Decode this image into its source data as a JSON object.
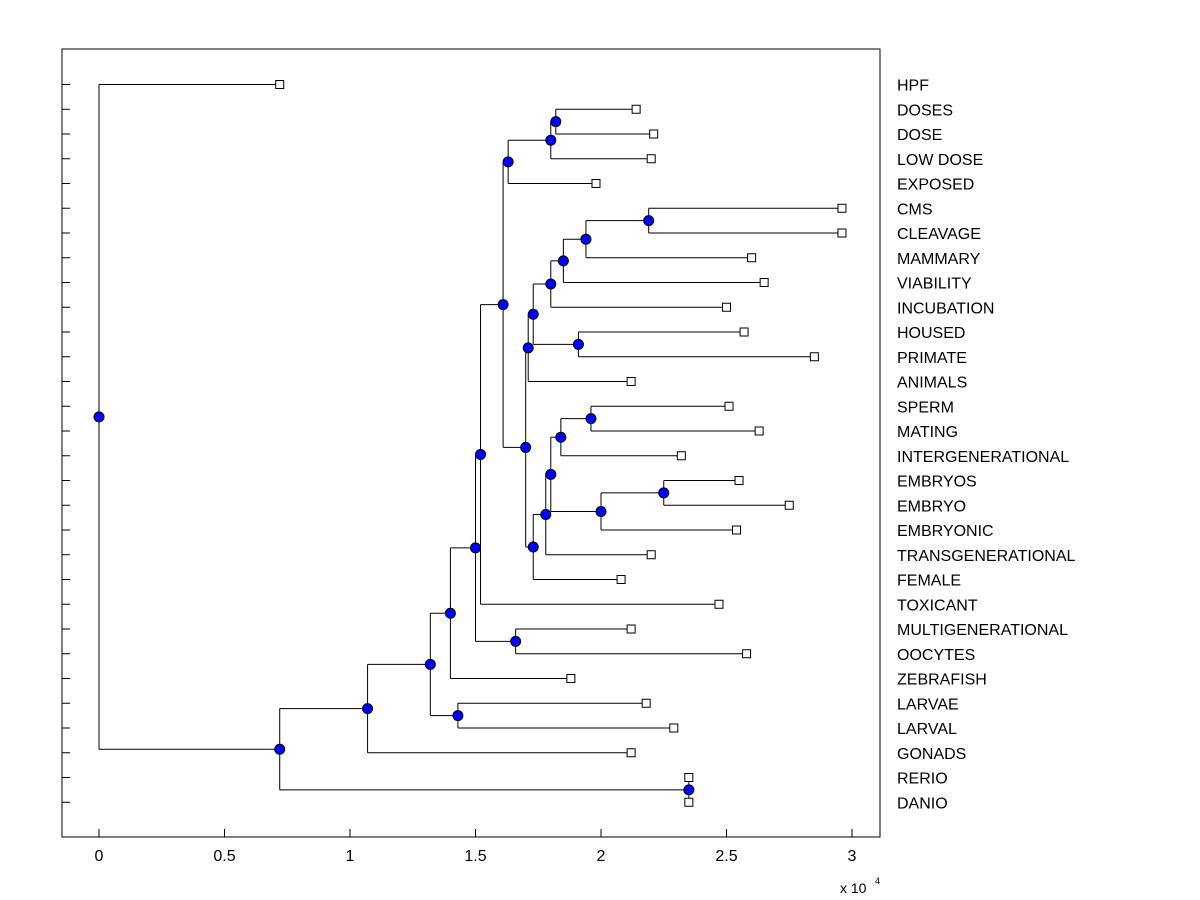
{
  "chart_data": {
    "type": "dendrogram",
    "title": "",
    "xlabel": "",
    "ylabel": "",
    "x_scale_label": "x 10",
    "x_scale_exponent": "4",
    "xlim": [
      -0.15,
      3.12
    ],
    "x_ticks": [
      0,
      0.5,
      1,
      1.5,
      2,
      2.5,
      3
    ],
    "x_tick_labels": [
      "0",
      "0.5",
      "1",
      "1.5",
      "2",
      "2.5",
      "3"
    ],
    "marker_color": "#0000ff",
    "leaves": [
      {
        "label": "HPF",
        "x": 0.72
      },
      {
        "label": "DOSES",
        "x": 2.14
      },
      {
        "label": "DOSE",
        "x": 2.21
      },
      {
        "label": "LOW DOSE",
        "x": 2.2
      },
      {
        "label": "EXPOSED",
        "x": 1.98
      },
      {
        "label": "CMS",
        "x": 2.96
      },
      {
        "label": "CLEAVAGE",
        "x": 2.96
      },
      {
        "label": "MAMMARY",
        "x": 2.6
      },
      {
        "label": "VIABILITY",
        "x": 2.65
      },
      {
        "label": "INCUBATION",
        "x": 2.5
      },
      {
        "label": "HOUSED",
        "x": 2.57
      },
      {
        "label": "PRIMATE",
        "x": 2.85
      },
      {
        "label": "ANIMALS",
        "x": 2.12
      },
      {
        "label": "SPERM",
        "x": 2.51
      },
      {
        "label": "MATING",
        "x": 2.63
      },
      {
        "label": "INTERGENERATIONAL",
        "x": 2.32
      },
      {
        "label": "EMBRYOS",
        "x": 2.55
      },
      {
        "label": "EMBRYO",
        "x": 2.75
      },
      {
        "label": "EMBRYONIC",
        "x": 2.54
      },
      {
        "label": "TRANSGENERATIONAL",
        "x": 2.2
      },
      {
        "label": "FEMALE",
        "x": 2.08
      },
      {
        "label": "TOXICANT",
        "x": 2.47
      },
      {
        "label": "MULTIGENERATIONAL",
        "x": 2.12
      },
      {
        "label": "OOCYTES",
        "x": 2.58
      },
      {
        "label": "ZEBRAFISH",
        "x": 1.88
      },
      {
        "label": "LARVAE",
        "x": 2.18
      },
      {
        "label": "LARVAL",
        "x": 2.29
      },
      {
        "label": "GONADS",
        "x": 2.12
      },
      {
        "label": "RERIO",
        "x": 2.35
      },
      {
        "label": "DANIO",
        "x": 2.35
      }
    ],
    "internal_nodes": [
      {
        "id": "n1",
        "x": 1.82,
        "children": [
          "DOSES",
          "DOSE"
        ]
      },
      {
        "id": "n2",
        "x": 1.8,
        "children": [
          "n1",
          "LOW DOSE"
        ]
      },
      {
        "id": "n3",
        "x": 1.63,
        "children": [
          "n2",
          "EXPOSED"
        ]
      },
      {
        "id": "n4",
        "x": 2.19,
        "children": [
          "CMS",
          "CLEAVAGE"
        ]
      },
      {
        "id": "n5",
        "x": 1.94,
        "children": [
          "n4",
          "MAMMARY"
        ]
      },
      {
        "id": "n6",
        "x": 1.85,
        "children": [
          "n5",
          "VIABILITY"
        ]
      },
      {
        "id": "n7",
        "x": 1.8,
        "children": [
          "n6",
          "INCUBATION"
        ]
      },
      {
        "id": "n8",
        "x": 1.91,
        "children": [
          "HOUSED",
          "PRIMATE"
        ]
      },
      {
        "id": "n9",
        "x": 1.73,
        "children": [
          "n7",
          "n8"
        ]
      },
      {
        "id": "n10",
        "x": 1.71,
        "children": [
          "n9",
          "ANIMALS"
        ]
      },
      {
        "id": "n11",
        "x": 1.96,
        "children": [
          "SPERM",
          "MATING"
        ]
      },
      {
        "id": "n12",
        "x": 1.84,
        "children": [
          "n11",
          "INTERGENERATIONAL"
        ]
      },
      {
        "id": "n13",
        "x": 2.25,
        "children": [
          "EMBRYOS",
          "EMBRYO"
        ]
      },
      {
        "id": "n14",
        "x": 2.0,
        "children": [
          "n13",
          "EMBRYONIC"
        ]
      },
      {
        "id": "n15",
        "x": 1.8,
        "children": [
          "n12",
          "n14"
        ]
      },
      {
        "id": "n16",
        "x": 1.78,
        "children": [
          "n15",
          "TRANSGENERATIONAL"
        ]
      },
      {
        "id": "n17",
        "x": 1.73,
        "children": [
          "n16",
          "FEMALE"
        ]
      },
      {
        "id": "n18",
        "x": 1.7,
        "children": [
          "n10",
          "n17"
        ]
      },
      {
        "id": "n19",
        "x": 1.61,
        "children": [
          "n3",
          "n18"
        ]
      },
      {
        "id": "n20",
        "x": 1.52,
        "children": [
          "n19",
          "TOXICANT"
        ]
      },
      {
        "id": "n21",
        "x": 1.66,
        "children": [
          "MULTIGENERATIONAL",
          "OOCYTES"
        ]
      },
      {
        "id": "n22",
        "x": 1.5,
        "children": [
          "n20",
          "n21"
        ]
      },
      {
        "id": "n23",
        "x": 1.4,
        "children": [
          "n22",
          "ZEBRAFISH"
        ]
      },
      {
        "id": "n24",
        "x": 1.43,
        "children": [
          "LARVAE",
          "LARVAL"
        ]
      },
      {
        "id": "n25",
        "x": 1.32,
        "children": [
          "n23",
          "n24"
        ]
      },
      {
        "id": "n26",
        "x": 1.07,
        "children": [
          "n25",
          "GONADS"
        ]
      },
      {
        "id": "n27",
        "x": 2.35,
        "children": [
          "RERIO",
          "DANIO"
        ]
      },
      {
        "id": "n28",
        "x": 0.72,
        "children": [
          "n26",
          "n27"
        ]
      },
      {
        "id": "n29",
        "x": 0.0,
        "children": [
          "HPF",
          "n28"
        ]
      }
    ]
  }
}
